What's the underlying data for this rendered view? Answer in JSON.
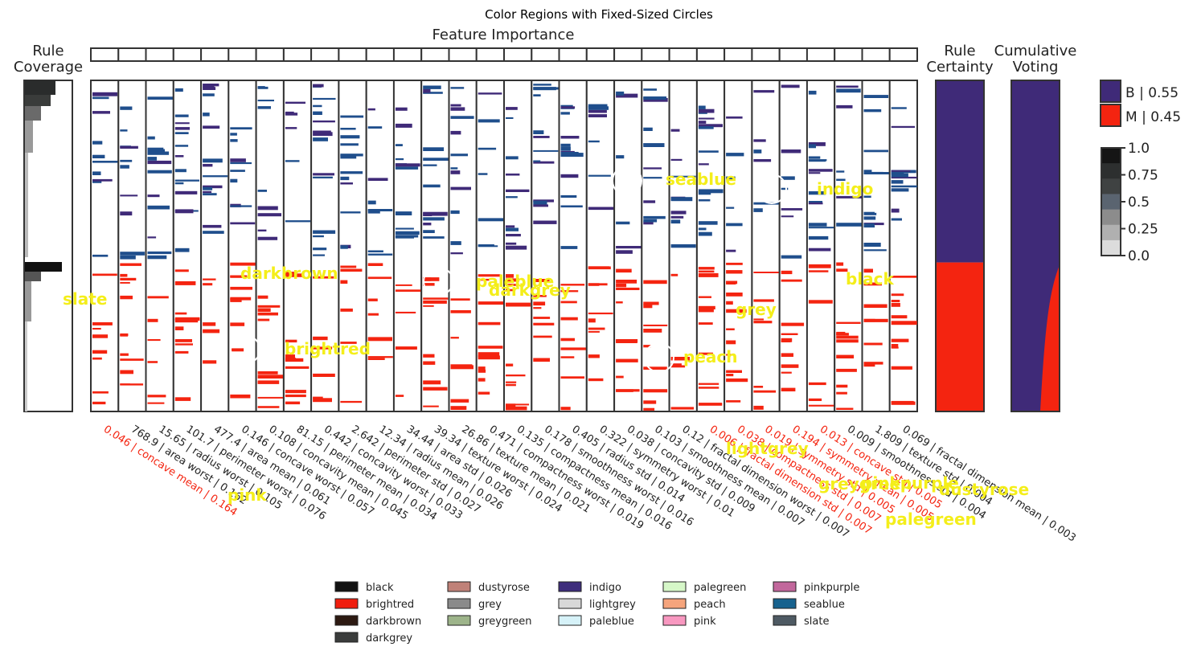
{
  "figure_title": "Color Regions with Fixed-Sized Circles",
  "colors": {
    "benign": "#3f2a78",
    "malignant": "#f42410",
    "dark_rule": "#1f4e8c",
    "overlay_text": "#f4ee1a",
    "frame": "#333333"
  },
  "panels": {
    "rule_coverage": "Rule\nCoverage",
    "feature_importance": "Feature Importance",
    "rule_certainty": "Rule\nCertainty",
    "cumulative_voting": "Cumulative\nVoting"
  },
  "class_legend": [
    {
      "label": "B | 0.55",
      "color": "#3f2a78"
    },
    {
      "label": "M | 0.45",
      "color": "#f42410"
    }
  ],
  "colorbar": {
    "ticks": [
      "1.0",
      "0.75",
      "0.5",
      "0.25",
      "0.0"
    ]
  },
  "chart_data": {
    "type": "heatmap",
    "title": "Color Regions with Fixed-Sized Circles",
    "features": [
      {
        "label": "0.046 | concave mean | 0.164",
        "highlight": true
      },
      {
        "label": "768.9 | area worst | 0.162",
        "highlight": false
      },
      {
        "label": "15.65 | radius worst | 0.105",
        "highlight": false
      },
      {
        "label": "101.7 | perimeter worst | 0.076",
        "highlight": false
      },
      {
        "label": "477.4 | area mean | 0.061",
        "highlight": false
      },
      {
        "label": "0.146 | concave worst | 0.057",
        "highlight": false
      },
      {
        "label": "0.108 | concavity mean | 0.045",
        "highlight": false
      },
      {
        "label": "81.15 | perimeter mean | 0.034",
        "highlight": false
      },
      {
        "label": "0.442 | concavity worst | 0.033",
        "highlight": false
      },
      {
        "label": "2.642 | perimeter std | 0.027",
        "highlight": false
      },
      {
        "label": "12.34 | radius mean | 0.026",
        "highlight": false
      },
      {
        "label": "34.44 | area std | 0.026",
        "highlight": false
      },
      {
        "label": "39.34 | texture worst | 0.024",
        "highlight": false
      },
      {
        "label": "26.86 | texture mean | 0.021",
        "highlight": false
      },
      {
        "label": "0.471 | compactness worst | 0.019",
        "highlight": false
      },
      {
        "label": "0.135 | compactness mean | 0.016",
        "highlight": false
      },
      {
        "label": "0.178 | smoothness worst | 0.016",
        "highlight": false
      },
      {
        "label": "0.405 | radius std | 0.014",
        "highlight": false
      },
      {
        "label": "0.322 | symmetry worst | 0.01",
        "highlight": false
      },
      {
        "label": "0.038 | concavity std | 0.009",
        "highlight": false
      },
      {
        "label": "0.103 | smoothness mean | 0.007",
        "highlight": false
      },
      {
        "label": "0.12 | fractal dimension worst | 0.007",
        "highlight": false
      },
      {
        "label": "0.006 | fractal dimension std | 0.007",
        "highlight": true
      },
      {
        "label": "0.038 | compactness std | 0.007",
        "highlight": true
      },
      {
        "label": "0.019 | symmetry std | 0.005",
        "highlight": true
      },
      {
        "label": "0.194 | symmetry mean | 0.005",
        "highlight": true
      },
      {
        "label": "0.013 | concave std | 0.005",
        "highlight": true
      },
      {
        "label": "0.009 | smoothness std | 0.004",
        "highlight": false
      },
      {
        "label": "1.809 | texture std | 0.004",
        "highlight": false
      },
      {
        "label": "0.069 | fractal dimension mean | 0.003",
        "highlight": false
      }
    ],
    "rule_certainty": {
      "B": 0.55,
      "M": 0.45
    },
    "colorbar_range": [
      0.0,
      1.0
    ]
  },
  "region_labels": [
    {
      "text": "seablue"
    },
    {
      "text": "indigo"
    },
    {
      "text": "darkbrown"
    },
    {
      "text": "paleblue"
    },
    {
      "text": "darkgrey"
    },
    {
      "text": "black"
    },
    {
      "text": "slate"
    },
    {
      "text": "grey"
    },
    {
      "text": "brightred"
    },
    {
      "text": "peach"
    },
    {
      "text": "lightgrey"
    },
    {
      "text": "pink"
    },
    {
      "text": "greygreen"
    },
    {
      "text": "pinkpurple"
    },
    {
      "text": "dustyrose"
    },
    {
      "text": "palegreen"
    }
  ],
  "color_legend": [
    {
      "label": "black",
      "color": "#111111"
    },
    {
      "label": "brightred",
      "color": "#f01e0e"
    },
    {
      "label": "darkbrown",
      "color": "#2d1a12"
    },
    {
      "label": "darkgrey",
      "color": "#3a3c3b"
    },
    {
      "label": "dustyrose",
      "color": "#c08178"
    },
    {
      "label": "grey",
      "color": "#8a8a8a"
    },
    {
      "label": "greygreen",
      "color": "#9db48a"
    },
    {
      "label": "indigo",
      "color": "#3e2d7c"
    },
    {
      "label": "lightgrey",
      "color": "#d8d8d8"
    },
    {
      "label": "paleblue",
      "color": "#d6f2f8"
    },
    {
      "label": "palegreen",
      "color": "#d6f7c8"
    },
    {
      "label": "peach",
      "color": "#f5a47c"
    },
    {
      "label": "pink",
      "color": "#f898c0"
    },
    {
      "label": "pinkpurple",
      "color": "#c2679c"
    },
    {
      "label": "seablue",
      "color": "#17628e"
    },
    {
      "label": "slate",
      "color": "#4e5a63"
    }
  ]
}
